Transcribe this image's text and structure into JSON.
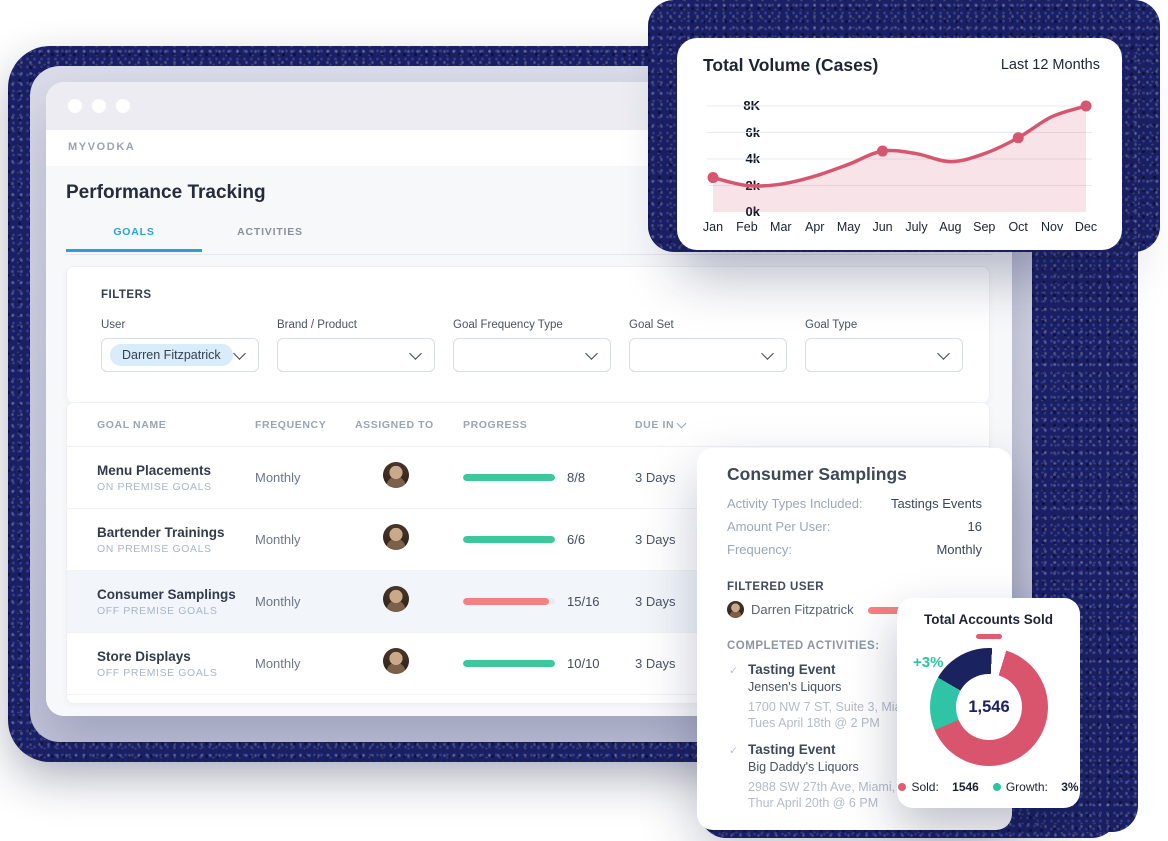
{
  "palette": {
    "teal": "#3dc79c",
    "coral_bar": "#f58080",
    "coral": "#d4566f",
    "blue": "#2aa0da",
    "navy_speckle": "#1b2064",
    "donut_navy": "#1b2260"
  },
  "window": {
    "brand": "MYVODKA",
    "page_title": "Performance Tracking",
    "tabs": [
      {
        "label": "GOALS",
        "active": true
      },
      {
        "label": "ACTIVITIES",
        "active": false
      }
    ]
  },
  "filters": {
    "heading": "FILTERS",
    "fields": [
      {
        "label": "User",
        "value": "Darren Fitzpatrick"
      },
      {
        "label": "Brand / Product",
        "value": ""
      },
      {
        "label": "Goal Frequency Type",
        "value": ""
      },
      {
        "label": "Goal Set",
        "value": ""
      },
      {
        "label": "Goal Type",
        "value": ""
      }
    ]
  },
  "table": {
    "columns": [
      "GOAL NAME",
      "FREQUENCY",
      "ASSIGNED TO",
      "PROGRESS",
      "DUE IN"
    ],
    "rows": [
      {
        "name": "Menu Placements",
        "category": "ON PREMISE GOALS",
        "frequency": "Monthly",
        "progress_label": "8/8",
        "progress_pct": 100,
        "progress_color": "teal",
        "due": "3 Days",
        "highlight": false,
        "chevron": false
      },
      {
        "name": "Bartender Trainings",
        "category": "ON PREMISE GOALS",
        "frequency": "Monthly",
        "progress_label": "6/6",
        "progress_pct": 100,
        "progress_color": "teal",
        "due": "3 Days",
        "highlight": false,
        "chevron": false
      },
      {
        "name": "Consumer Samplings",
        "category": "OFF PREMISE GOALS",
        "frequency": "Monthly",
        "progress_label": "15/16",
        "progress_pct": 94,
        "progress_color": "coral_bar",
        "due": "3 Days",
        "highlight": true,
        "chevron": true
      },
      {
        "name": "Store Displays",
        "category": "OFF PREMISE GOALS",
        "frequency": "Monthly",
        "progress_label": "10/10",
        "progress_pct": 100,
        "progress_color": "teal",
        "due": "3 Days",
        "highlight": false,
        "chevron": false
      }
    ]
  },
  "chart_data": [
    {
      "type": "area",
      "title": "Total Volume (Cases)",
      "subtitle": "Last 12 Months",
      "categories": [
        "Jan",
        "Feb",
        "Mar",
        "Apr",
        "May",
        "Jun",
        "July",
        "Aug",
        "Sep",
        "Oct",
        "Nov",
        "Dec"
      ],
      "values": [
        2.6,
        2.0,
        2.1,
        2.7,
        3.6,
        4.6,
        4.4,
        3.8,
        4.4,
        5.6,
        7.2,
        8.0
      ],
      "unit": "thousand cases",
      "ylim": [
        0,
        8
      ],
      "y_ticks": [
        "8K",
        "6k",
        "4k",
        "2k",
        "0k"
      ],
      "y_tick_values": [
        8,
        6,
        4,
        2,
        0
      ],
      "grid_values": [
        8,
        6,
        4,
        2
      ],
      "grid": "horizontal",
      "dot_categories": [
        "Jan",
        "Jun",
        "Oct",
        "Dec"
      ],
      "line_color": "#d4566f",
      "fill_color": "rgba(212,86,111,0.16)",
      "legend_position": "none"
    },
    {
      "type": "donut",
      "title": "Total Accounts Sold",
      "center_label": "1,546",
      "callout": "+3%",
      "start_deg": 17,
      "segments": [
        {
          "name": "Sold",
          "value": 1546,
          "color": "#d9556e",
          "deg": 230
        },
        {
          "name": "Growth",
          "value": "3%",
          "color": "#2ec4a5",
          "deg": 53
        },
        {
          "name": "Remainder",
          "color": "#1b2260",
          "deg": 63
        },
        {
          "name": "gap",
          "color": "#ffffff",
          "deg": 14
        }
      ],
      "legend": [
        {
          "label": "Sold:",
          "value": "1546",
          "color": "#e05c6e"
        },
        {
          "label": "Growth:",
          "value": "3%",
          "color": "#2ec4a5"
        }
      ]
    }
  ],
  "sampling_card": {
    "title": "Consumer Samplings",
    "details": [
      {
        "label": "Activity Types Included:",
        "value": "Tastings Events"
      },
      {
        "label": "Amount Per User:",
        "value": "16"
      },
      {
        "label": "Frequency:",
        "value": "Monthly"
      }
    ],
    "filtered_user_heading": "FILTERED USER",
    "filtered_user": "Darren Fitzpatrick",
    "activities_heading": "COMPLETED ACTIVITIES:",
    "check_glyph": "✓",
    "activities": [
      {
        "title": "Tasting Event",
        "venue": "Jensen's Liquors",
        "address": "1700 NW 7 ST, Suite 3, Miam",
        "datetime": "Tues April 18th @ 2 PM"
      },
      {
        "title": "Tasting Event",
        "venue": "Big Daddy's Liquors",
        "address": "2988 SW 27th Ave, Miami, F",
        "datetime": "Thur April 20th @ 6 PM"
      }
    ]
  }
}
